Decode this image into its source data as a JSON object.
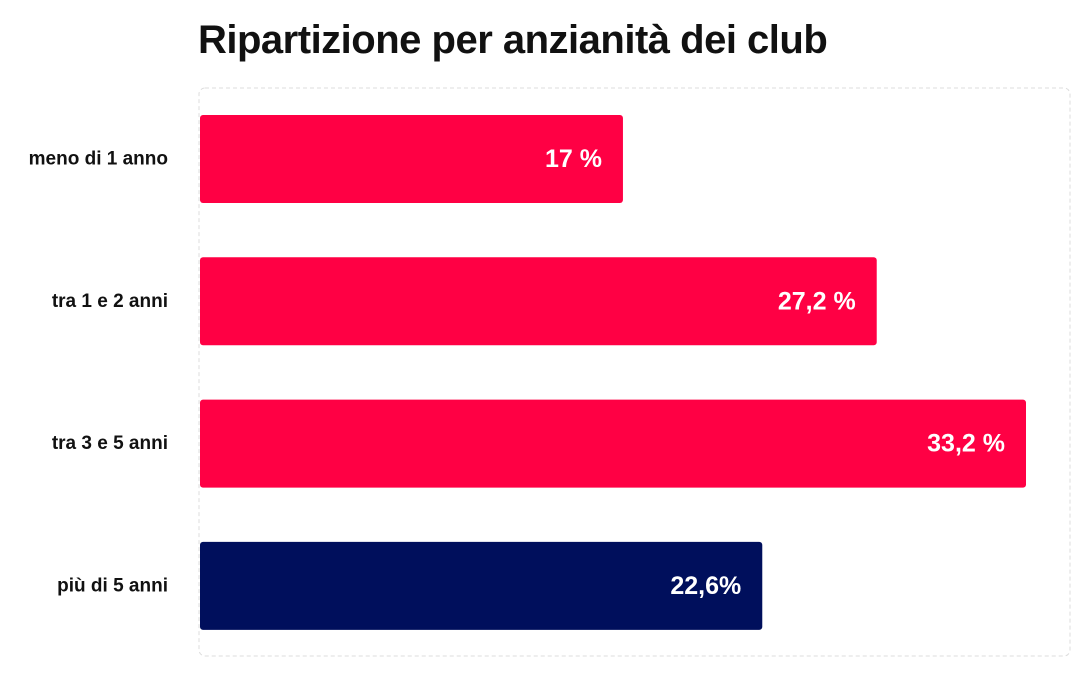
{
  "chart_data": {
    "type": "bar",
    "orientation": "horizontal",
    "title": "Ripartizione per anzianità dei club",
    "categories": [
      "meno di 1 anno",
      "tra 1 e 2 anni",
      "tra 3 e 5 anni",
      "più di 5 anni"
    ],
    "values": [
      17,
      27.2,
      33.2,
      22.6
    ],
    "value_labels": [
      "17 %",
      "27,2 %",
      "33,2 %",
      "22,6%"
    ],
    "bar_colors": [
      "#ff0044",
      "#ff0044",
      "#ff0044",
      "#000f5c"
    ],
    "xlim": [
      0,
      35
    ],
    "grid": false,
    "legend": "none"
  }
}
